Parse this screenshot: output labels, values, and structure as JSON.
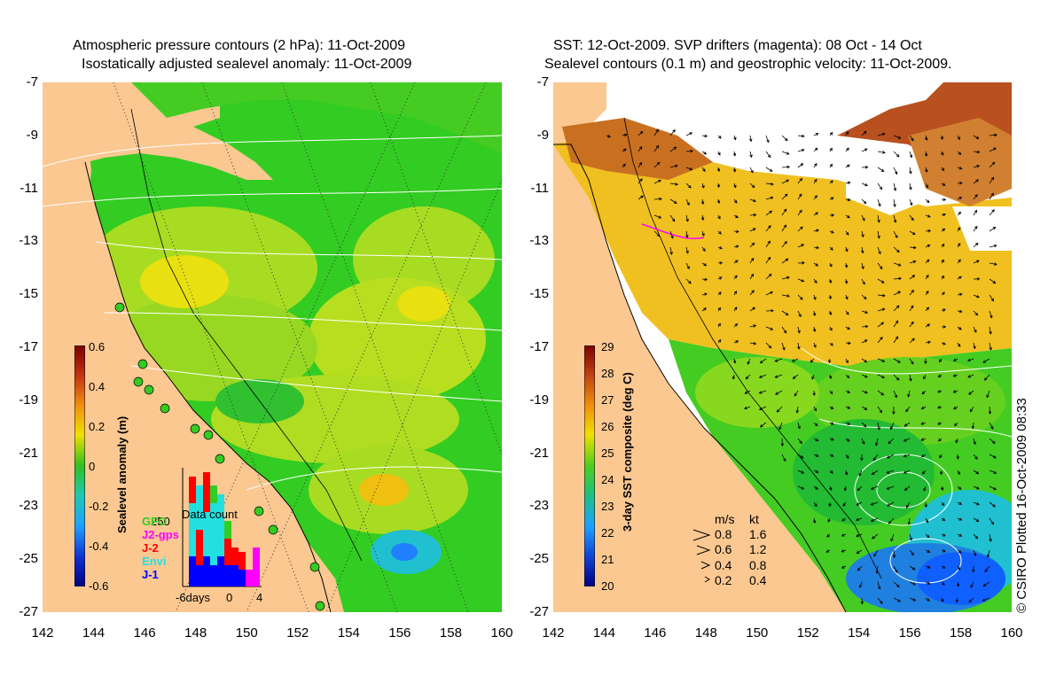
{
  "left_panel": {
    "title_line1": "Atmospheric pressure contours (2 hPa): 11-Oct-2009",
    "title_line2": "Isostatically adjusted sealevel anomaly: 11-Oct-2009",
    "colorbar": {
      "label": "Sealevel anomaly (m)",
      "ticks": [
        "0.6",
        "0.4",
        "0.2",
        "0",
        "-0.2",
        "-0.4",
        "-0.6"
      ]
    },
    "missions": {
      "gfo": "GFO",
      "jason1_gps": "J2-gps",
      "j2": "J-2",
      "envi": "Envi",
      "j1": "J-1"
    },
    "data_count": {
      "label": "Data count",
      "count_label": "250",
      "x_ticks": [
        "-6days",
        "0",
        "4"
      ]
    }
  },
  "right_panel": {
    "title_line1": "SST: 12-Oct-2009. SVP drifters (magenta): 08 Oct - 14 Oct",
    "title_line2": "Sealevel contours (0.1 m) and geostrophic velocity: 11-Oct-2009.",
    "colorbar": {
      "label": "3-day SST composite (deg C)",
      "ticks": [
        "29",
        "28",
        "27",
        "26",
        "25",
        "24",
        "23",
        "22",
        "21",
        "20"
      ]
    },
    "velocity_legend": {
      "header_ms": "m/s",
      "header_kt": "kt",
      "rows": [
        {
          "ms": "0.8",
          "kt": "1.6"
        },
        {
          "ms": "0.6",
          "kt": "1.2"
        },
        {
          "ms": "0.4",
          "kt": "0.8"
        },
        {
          "ms": "0.2",
          "kt": "0.4"
        }
      ]
    }
  },
  "axes": {
    "y_ticks": [
      "-7",
      "-9",
      "-11",
      "-13",
      "-15",
      "-17",
      "-19",
      "-21",
      "-23",
      "-25",
      "-27"
    ],
    "x_ticks": [
      "142",
      "144",
      "146",
      "148",
      "150",
      "152",
      "154",
      "156",
      "158",
      "160"
    ]
  },
  "copyright": "© CSIRO Plotted 16-Oct-2009 08:33",
  "colors": {
    "land": "#fbc891",
    "ocean_green": "#33cc22",
    "light_green": "#88dd22",
    "yellow_green": "#c8e020",
    "yellow": "#f0e000",
    "cyan": "#22c8d8",
    "blue": "#2060ff",
    "orange": "#f0a020",
    "brown": "#c05010"
  }
}
